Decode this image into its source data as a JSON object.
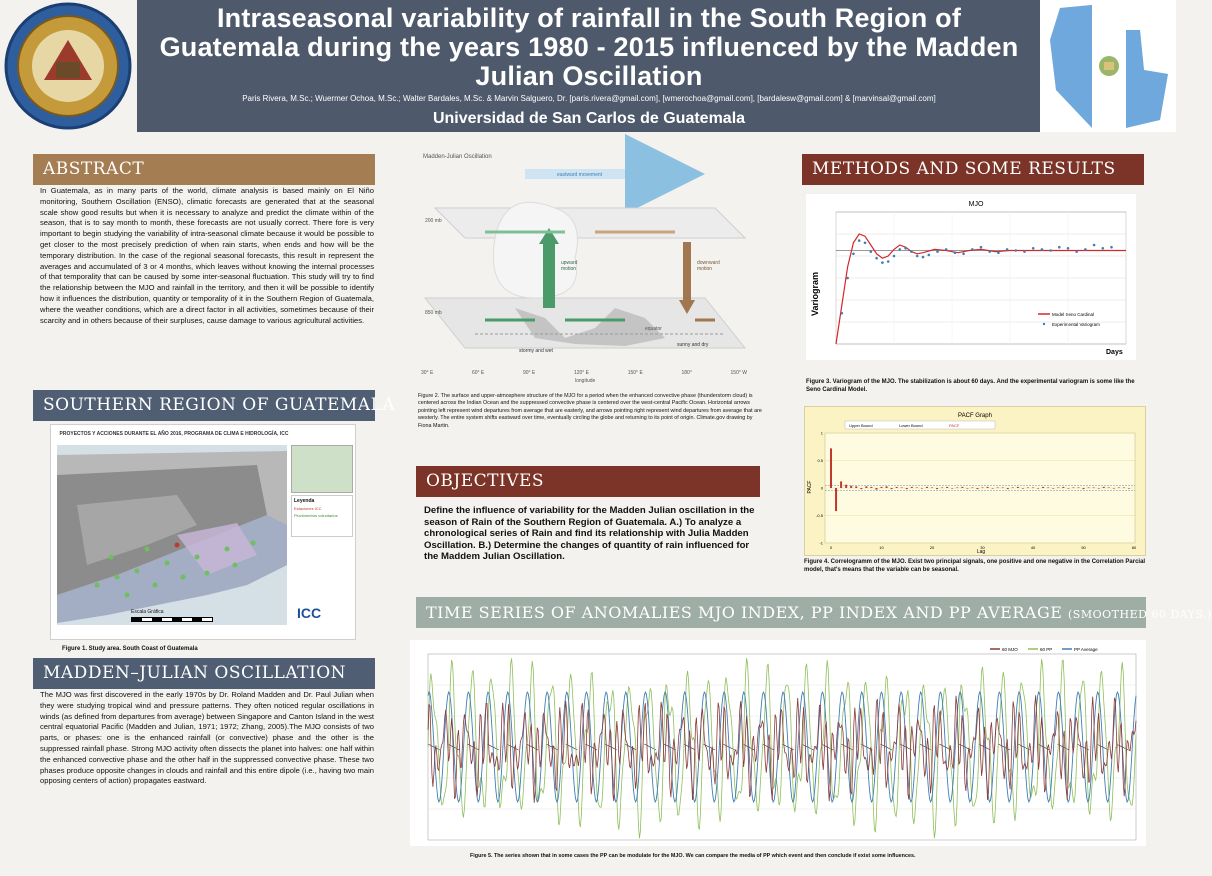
{
  "header": {
    "title": "Intraseasonal variability of rainfall in the  South Region of Guatemala during the years 1980 - 2015 influenced by the Madden Julian Oscillation",
    "authors": "Paris Rivera, M.Sc.; Wuermer Ochoa, M.Sc.; Walter Bardales, M.Sc. & Marvin Salguero, Dr. [paris.rivera@gmail.com], [wmerochoa@gmail.com], [bardalesw@gmail.com] & [marvinsal@gmail.com]",
    "university": "Universidad de San Carlos  de Guatemala"
  },
  "abstract": {
    "heading": "ABSTRACT",
    "text": "In Guatemala, as in many parts of the world, climate analysis is based mainly on El Niño monitoring, Southern Oscillation (ENSO), climatic forecasts are generated that at the seasonal scale show good results but when it is necessary to analyze and predict the climate within of the season, that is to say month to month, these forecasts are not usually correct. There fore is very important to begin studying the variability of intra-seasonal climate because it would be possible to get closer to the most precisely prediction of when rain starts, when ends and how will be the temporary distribution. In the case of the regional seasonal forecasts, this result in represent the averages and accumulated of 3 or 4 months, which leaves without knowing the internal processes of that temporality that can be caused by some inter-seasonal fluctuation. This study will try to find the relationship between the MJO and rainfall in the territory, and then it will be possible to identify how it influences the distribution, quantity or temporality of it in the Southern Region of Guatemala, where the weather conditions, which are a direct factor in all activities, sometimes because of their scarcity and in others because of their surpluses, cause damage to various agricultural activities."
  },
  "southern": {
    "heading": "SOUTHERN REGION OF GUATEMALA",
    "map_title": "PROYECTOS Y ACCIONES DURANTE EL AÑO 2016, PROGRAMA DE CLIMA E HIDROLOGÍA, ICC",
    "legend_title": "Leyenda",
    "legend_items": [
      "Estaciones ICC",
      "Pluviómetros voluntarios"
    ],
    "scale_label": "Escala Gráfica",
    "logo": "ICC",
    "caption": "Figure 1. Study area. South Coast of Guatemala"
  },
  "mjo_section": {
    "heading": "MADDEN–JULIAN OSCILLATION",
    "text": "The MJO was first discovered in the early 1970s by Dr. Roland Madden and Dr. Paul Julian when they were studying tropical wind and pressure patterns. They often noticed regular oscillations in winds (as defined from departures from average) between Singapore and Canton Island in the west central equatorial Pacific (Madden and Julian, 1971; 1972; Zhang, 2005).The MJO consists of two parts, or phases: one is the enhanced rainfall (or convective) phase and the other is the suppressed rainfall phase. Strong MJO activity often dissects the planet into halves: one half within the enhanced convective phase and the other half in the suppressed convective phase. These two phases produce opposite changes in clouds and rainfall and this entire dipole (i.e., having two main opposing centers of action) propagates eastward."
  },
  "diagram": {
    "title": "Madden-Julian Oscillation",
    "eastward": "eastward movement",
    "level_top": "200 mb",
    "level_bottom": "850 mb",
    "upward": "upward motion",
    "downward": "downward motion",
    "stormy": "stormy and wet",
    "sunny": "sunny and dry",
    "equator": "equator",
    "xaxis_label": "longitude",
    "xticks": [
      "30° E",
      "60° E",
      "90° E",
      "120° E",
      "150° E",
      "180°",
      "150° W"
    ],
    "caption": "Figure 2. The surface and upper-atmosphere structure of the MJO for a period when the enhanced convective phase (thunderstorm cloud) is centered across the Indian Ocean and the suppressed convective phase is centered over the west-central Pacific Ocean. Horizontal arrows pointing left represent wind departures from average that are easterly, and arrows pointing right represent wind departures from average that are westerly. The entire system shifts eastward over time, eventually circling the globe and returning to its point of origin. Climate.gov drawing by Fiona Martin."
  },
  "objectives": {
    "heading": "OBJECTIVES",
    "text": "Define the influence of variability for the Madden Julian oscillation in the season of Rain of the Southern Region of Guatemala. A.) To analyze a chronological series of Rain and find its relationship with Julia Madden Oscillation. B.) Determine the changes of quantity of rain influenced for the Maddem Julian Oscillation."
  },
  "methods": {
    "heading": "METHODS AND SOME RESULTS",
    "fig3_caption": "Figure 3. Variogram of the MJO. The stabilization is about 60 days. And the experimental variogram is some like the Seno Cardinal Model.",
    "fig4_caption": "Figure 4. Correlogramm of the MJO. Exist two principal signals, one positive and one negative in the Correlation Parcial model, that's means that the variable can be seasonal."
  },
  "timeseries": {
    "heading": "TIME SERIES OF ANOMALIES MJO INDEX, PP INDEX AND PP AVERAGE",
    "heading_small": "(SMOOTHED 60 DAYS.)",
    "caption": "Figure 5. The series shown that in some cases the PP can be modulate for the MJO. We can compare the media of PP which event and then conclude if exist some influences."
  },
  "colors": {
    "header": "#4e5a6b",
    "tan": "#a47d52",
    "slate": "#4f5e73",
    "brown": "#7b3427",
    "sage": "#9eada6"
  },
  "chart_data": [
    {
      "type": "line",
      "title": "MJO",
      "xlabel": "Days",
      "ylabel": "Variogram",
      "xlim": [
        0,
        100
      ],
      "ylim": [
        0,
        1.2
      ],
      "series": [
        {
          "name": "Model Seno Cardinal",
          "x": [
            0,
            2,
            4,
            6,
            8,
            10,
            12,
            14,
            16,
            18,
            20,
            22,
            24,
            26,
            28,
            30,
            34,
            38,
            42,
            46,
            50,
            55,
            60,
            65,
            70,
            75,
            80,
            85,
            90,
            95,
            100
          ],
          "y": [
            0,
            0.35,
            0.7,
            0.92,
            1.0,
            0.98,
            0.9,
            0.82,
            0.78,
            0.8,
            0.86,
            0.9,
            0.88,
            0.84,
            0.82,
            0.83,
            0.86,
            0.85,
            0.83,
            0.85,
            0.86,
            0.84,
            0.85,
            0.85,
            0.85,
            0.85,
            0.85,
            0.85,
            0.85,
            0.85,
            0.85
          ]
        },
        {
          "name": "Experimental Variogram",
          "x": [
            2,
            4,
            6,
            8,
            10,
            12,
            14,
            16,
            18,
            20,
            22,
            24,
            26,
            28,
            30,
            32,
            35,
            38,
            41,
            44,
            47,
            50,
            53,
            56,
            59,
            62,
            65,
            68,
            71,
            74,
            77,
            80,
            83,
            86,
            89,
            92,
            95
          ],
          "y": [
            0.28,
            0.6,
            0.82,
            0.94,
            0.92,
            0.84,
            0.78,
            0.74,
            0.75,
            0.8,
            0.86,
            0.87,
            0.84,
            0.8,
            0.79,
            0.81,
            0.84,
            0.86,
            0.83,
            0.82,
            0.86,
            0.88,
            0.84,
            0.83,
            0.86,
            0.85,
            0.84,
            0.87,
            0.86,
            0.85,
            0.88,
            0.87,
            0.84,
            0.86,
            0.9,
            0.87,
            0.88
          ]
        }
      ]
    },
    {
      "type": "bar",
      "title": "PACF Graph",
      "legend": [
        "Upper Bound",
        "Lower Bound",
        "PACF"
      ],
      "xlabel": "Lag",
      "ylabel": "PACF",
      "ylim": [
        -1,
        1
      ],
      "xticks": [
        0,
        10,
        20,
        30,
        40,
        50,
        60
      ],
      "upper_bound": 0.05,
      "lower_bound": -0.05,
      "values": [
        0.72,
        -0.42,
        0.12,
        0.06,
        0.04,
        0.03,
        -0.02,
        0.03,
        0.02,
        -0.03,
        0.02,
        0.03,
        -0.02,
        0.02,
        0.01,
        -0.02,
        0.02,
        0.01,
        -0.01,
        0.02,
        0.01,
        -0.02,
        0.01,
        0.02,
        -0.01,
        0.01,
        0.02,
        -0.01,
        0.01,
        -0.02,
        0.01,
        0.02,
        -0.01,
        0.01,
        0.01,
        -0.02,
        0.01,
        0.02,
        -0.01,
        0.01,
        0.01,
        -0.01,
        0.02,
        0.01,
        -0.01,
        0.01,
        0.02,
        -0.01,
        0.01,
        0.01,
        -0.02,
        0.01,
        0.01,
        -0.01,
        0.02,
        0.01,
        -0.01,
        0.01,
        0.01,
        -0.01
      ]
    },
    {
      "type": "line",
      "title": "",
      "legend": [
        "60 MJO",
        "60 PP",
        "PP Average"
      ],
      "colors": [
        "#8a3a3a",
        "#8fbf5a",
        "#3f7fb5"
      ],
      "periods": 36,
      "ylim": [
        -3,
        3
      ]
    }
  ]
}
